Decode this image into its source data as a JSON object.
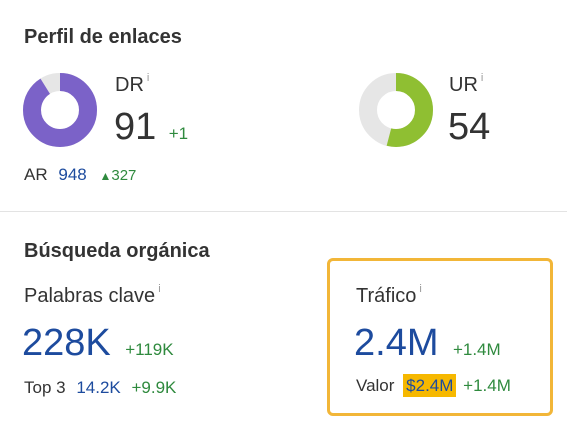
{
  "backlinks": {
    "title": "Perfil de enlaces",
    "dr": {
      "label": "DR",
      "info": "i",
      "value": "91",
      "delta": "+1",
      "ring_fraction": 0.91,
      "ring_color": "#7b62c8"
    },
    "ur": {
      "label": "UR",
      "info": "i",
      "value": "54",
      "ring_fraction": 0.54,
      "ring_color": "#8fbf32"
    },
    "ar": {
      "label": "AR",
      "value": "948",
      "delta": "327"
    }
  },
  "organic": {
    "title": "Búsqueda orgánica",
    "keywords": {
      "label": "Palabras clave",
      "info": "i",
      "value": "228K",
      "delta": "+119K",
      "top3_label": "Top 3",
      "top3_value": "14.2K",
      "top3_delta": "+9.9K"
    },
    "traffic": {
      "label": "Tráfico",
      "info": "i",
      "value": "2.4M",
      "delta": "+1.4M",
      "valor_label": "Valor",
      "valor_value": "$2.4M",
      "valor_delta": "+1.4M"
    }
  },
  "colors": {
    "highlight_border": "#f2b638",
    "positive": "#2f8a3e",
    "link_blue": "#1d4b9e",
    "ring_track": "#e6e6e6"
  }
}
